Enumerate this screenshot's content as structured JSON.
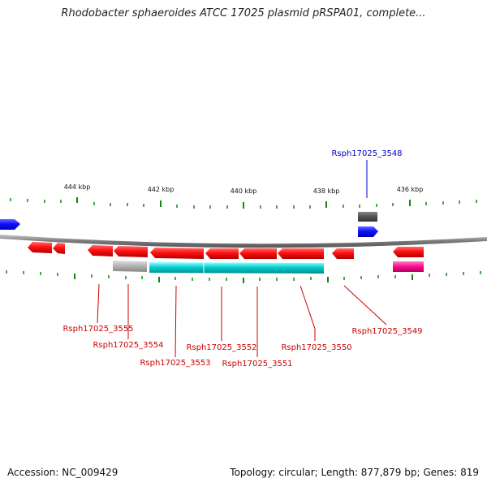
{
  "title": "Rhodobacter sphaeroides ATCC 17025 plasmid pRSPA01, complete...",
  "footer": {
    "accession": "Accession: NC_009429",
    "topology": "Topology: circular; Length: 877,879 bp; Genes: 819"
  },
  "colors": {
    "forward_gene": "#1010ff",
    "reverse_gene": "#ff1010",
    "cds_cyan": "#00c8c8",
    "gray_feature": "#b0b0b0",
    "dark_feature": "#555555",
    "pink_feature": "#ff1090",
    "backbone": "#808080",
    "ticks": "#118811",
    "label_blue": "#0000cc",
    "label_red": "#cc0000"
  },
  "ticks": [
    {
      "label": "444 kbp"
    },
    {
      "label": "442 kbp"
    },
    {
      "label": "440 kbp"
    },
    {
      "label": "438 kbp"
    },
    {
      "label": "436 kbp"
    }
  ],
  "gene_labels": [
    {
      "text": "Rsph17025_3548"
    },
    {
      "text": "Rsph17025_3555"
    },
    {
      "text": "Rsph17025_3554"
    },
    {
      "text": "Rsph17025_3553"
    },
    {
      "text": "Rsph17025_3552"
    },
    {
      "text": "Rsph17025_3551"
    },
    {
      "text": "Rsph17025_3550"
    },
    {
      "text": "Rsph17025_3549"
    }
  ]
}
